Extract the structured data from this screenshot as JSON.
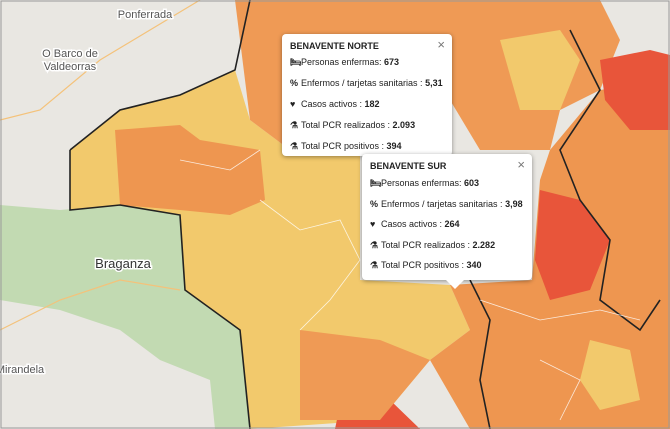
{
  "places": [
    "Ponferrada",
    "O Barco de",
    "Valdeorras",
    "Braganza",
    "Mirandela"
  ],
  "popups": [
    {
      "title": "BENAVENTE NORTE",
      "close": "×",
      "rows": [
        {
          "label": "Personas enfermas: ",
          "value": "673"
        },
        {
          "label": "Enfermos / tarjetas sanitarias : ",
          "value": "5,31"
        },
        {
          "label": "Casos activos : ",
          "value": "182"
        },
        {
          "label": "Total PCR realizados : ",
          "value": "2.093"
        },
        {
          "label": "Total PCR positivos : ",
          "value": "394"
        }
      ]
    },
    {
      "title": "BENAVENTE SUR",
      "close": "×",
      "rows": [
        {
          "label": "Personas enfermas: ",
          "value": "603"
        },
        {
          "label": "Enfermos / tarjetas sanitarias : ",
          "value": "3,98"
        },
        {
          "label": "Casos activos : ",
          "value": "264"
        },
        {
          "label": "Total PCR realizados : ",
          "value": "2.282"
        },
        {
          "label": "Total PCR positivos : ",
          "value": "340"
        }
      ]
    }
  ]
}
